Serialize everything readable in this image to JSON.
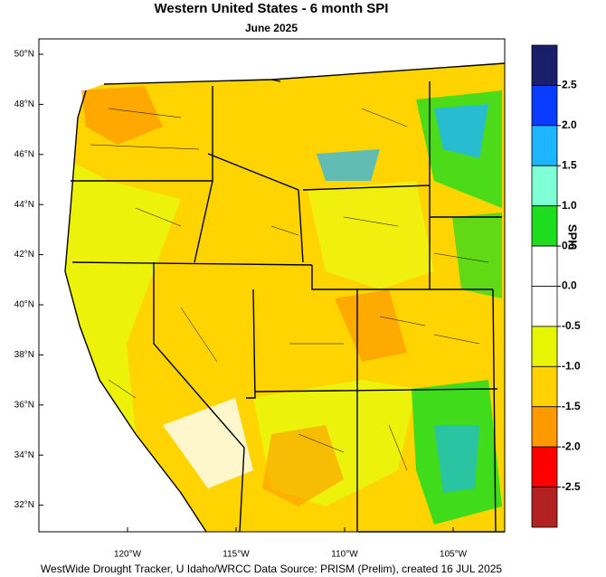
{
  "title": "Western United States - 6 month SPI",
  "subtitle": "June 2025",
  "footer": "WestWide Drought Tracker, U Idaho/WRCC Data Source: PRISM (Prelim), created 16 JUL 2025",
  "lat_ticks": [
    {
      "value": 50,
      "label": "50°N"
    },
    {
      "value": 48,
      "label": "48°N"
    },
    {
      "value": 46,
      "label": "46°N"
    },
    {
      "value": 44,
      "label": "44°N"
    },
    {
      "value": 42,
      "label": "42°N"
    },
    {
      "value": 40,
      "label": "40°N"
    },
    {
      "value": 38,
      "label": "38°N"
    },
    {
      "value": 36,
      "label": "36°N"
    },
    {
      "value": 34,
      "label": "34°N"
    },
    {
      "value": 32,
      "label": "32°N"
    }
  ],
  "lon_ticks": [
    {
      "value": -120,
      "label": "120°W"
    },
    {
      "value": -115,
      "label": "115°W"
    },
    {
      "value": -110,
      "label": "110°W"
    },
    {
      "value": -105,
      "label": "105°W"
    }
  ],
  "colorbar": {
    "label": "SPI6",
    "ticks": [
      2.5,
      {
        "value": 2.0,
        "label": "2.0"
      },
      1.5,
      {
        "value": 1.0,
        "label": "1.0"
      },
      0.5,
      {
        "value": 0.0,
        "label": "0.0"
      },
      -0.5,
      {
        "value": -1.0,
        "label": "-1.0"
      },
      -1.5,
      {
        "value": -2.0,
        "label": "-2.0"
      },
      -2.5
    ],
    "colors": [
      "#1a1f6b",
      "#0a3cff",
      "#1eb4ff",
      "#7fffd4",
      "#1edc1e",
      "#ffffff",
      "#ffffff",
      "#e6f500",
      "#ffd200",
      "#ff9900",
      "#ff0000",
      "#b22222"
    ]
  }
}
